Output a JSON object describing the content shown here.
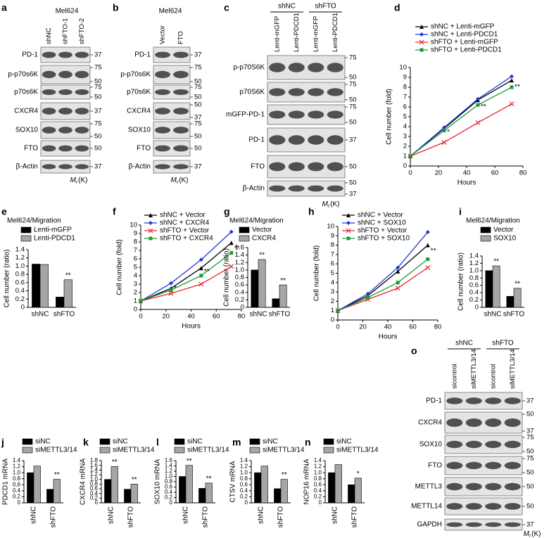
{
  "blots": {
    "a": {
      "panel": "a",
      "title": "Mel624",
      "lanes": [
        "shNC",
        "shFTO-1",
        "shFTO-2"
      ],
      "rows": [
        {
          "label": "PD-1",
          "mw": [
            37
          ]
        },
        {
          "label": "p-p70s6K",
          "mw": [
            75,
            50
          ]
        },
        {
          "label": "p70s6K",
          "mw": [
            75,
            50
          ]
        },
        {
          "label": "CXCR4",
          "mw": [
            37
          ]
        },
        {
          "label": "SOX10",
          "mw": [
            75,
            50
          ]
        },
        {
          "label": "FTO",
          "mw": [
            50
          ]
        },
        {
          "label": "β-Actin",
          "mw": [
            37
          ]
        }
      ],
      "mr": {
        "m": "M",
        "r": "r",
        "unit": "(K)"
      }
    },
    "b": {
      "panel": "b",
      "title": "Mel624",
      "lanes": [
        "Vector",
        "FTO"
      ],
      "rows": [
        {
          "label": "PD-1",
          "mw": [
            37
          ]
        },
        {
          "label": "p-p70s6K",
          "mw": [
            75,
            50
          ]
        },
        {
          "label": "p70s6K",
          "mw": [
            75,
            50
          ]
        },
        {
          "label": "CXCR4",
          "mw": [
            50,
            37
          ]
        },
        {
          "label": "SOX10",
          "mw": [
            75,
            50
          ]
        },
        {
          "label": "FTO",
          "mw": [
            50
          ]
        },
        {
          "label": "β-Actin",
          "mw": [
            37
          ]
        }
      ],
      "mr": {
        "m": "M",
        "r": "r",
        "unit": "(K)"
      }
    },
    "c": {
      "panel": "c",
      "groups": [
        "shNC",
        "shFTO"
      ],
      "lanes": [
        "Lenti-mGFP",
        "Lenti-PDCD1",
        "Lenti-mGFP",
        "Lenti-PDCD1"
      ],
      "rows": [
        {
          "label": "p-p70S6K",
          "mw": [
            75,
            50
          ]
        },
        {
          "label": "p70S6K",
          "mw": [
            75,
            50
          ]
        },
        {
          "label": "mGFP-PD-1",
          "mw": [
            75,
            50
          ]
        },
        {
          "label": "PD-1",
          "mw": [
            37
          ]
        },
        {
          "label": "FTO",
          "mw": [
            50
          ]
        },
        {
          "label": "β-Actin",
          "mw": [
            50,
            37
          ]
        }
      ],
      "mr": {
        "m": "M",
        "r": "r",
        "unit": "(K)"
      }
    },
    "o": {
      "panel": "o",
      "groups": [
        "shNC",
        "shFTO"
      ],
      "lanes": [
        "sicontrol",
        "siMETTL3/14",
        "sicontrol",
        "siMETTL3/14"
      ],
      "rows": [
        {
          "label": "PD-1",
          "mw": [
            37
          ]
        },
        {
          "label": "CXCR4",
          "mw": [
            50,
            37
          ]
        },
        {
          "label": "SOX10",
          "mw": [
            75,
            50
          ]
        },
        {
          "label": "FTO",
          "mw": [
            75,
            50
          ]
        },
        {
          "label": "METTL3",
          "mw": [
            50
          ]
        },
        {
          "label": "METTL14",
          "mw": [
            50
          ]
        },
        {
          "label": "GAPDH",
          "mw": [
            37
          ]
        }
      ],
      "mr": {
        "m": "M",
        "r": "r",
        "unit": "(K)"
      }
    }
  },
  "chart_data": [
    {
      "panel": "d",
      "type": "line",
      "x": [
        0,
        24,
        48,
        72
      ],
      "xlim": [
        0,
        80
      ],
      "xticks": [
        0,
        20,
        40,
        60,
        80
      ],
      "ylim": [
        0,
        10
      ],
      "yticks": [
        0,
        1,
        2,
        3,
        4,
        5,
        6,
        7,
        8,
        9,
        10
      ],
      "xlabel": "Hours",
      "ylabel": "Cell number (fold)",
      "series": [
        {
          "name": "shNC + Lenti-mGFP",
          "color": "#000000",
          "marker": "triangle",
          "values": [
            1,
            3.8,
            6.7,
            8.7
          ]
        },
        {
          "name": "shNC + Lenti-PDCD1",
          "color": "#1f3ad6",
          "marker": "diamond",
          "values": [
            1,
            3.9,
            6.8,
            9.1
          ]
        },
        {
          "name": "shFTO + Lenti-mGFP",
          "color": "#e8262b",
          "marker": "cross",
          "values": [
            1,
            2.4,
            4.4,
            6.3
          ]
        },
        {
          "name": "shFTO + Lenti-PDCD1",
          "color": "#1d9a36",
          "marker": "square",
          "values": [
            1,
            3.6,
            6.2,
            8.0
          ]
        }
      ],
      "annotations": [
        {
          "text": "*",
          "x": 24
        },
        {
          "text": "**",
          "x": 48
        },
        {
          "text": "**",
          "x": 72
        }
      ]
    },
    {
      "panel": "e",
      "type": "bar",
      "subtitle": "Mel624/Migration",
      "ylabel": "Cell number (ratio)",
      "categories": [
        "shNC",
        "shFTO"
      ],
      "ylim": [
        0,
        1.4
      ],
      "yticks": [
        0,
        0.2,
        0.4,
        0.6,
        0.8,
        {
          "value": 1,
          "label": "1.0"
        },
        1.2,
        1.4
      ],
      "series": [
        {
          "name": "Lenti-mGFP",
          "color": "#000000",
          "values": [
            1.05,
            0.25
          ]
        },
        {
          "name": "Lenti-PDCD1",
          "color": "#a6a6a6",
          "values": [
            1.04,
            0.67
          ]
        }
      ],
      "annotations": [
        {
          "text": "**",
          "category": "shFTO"
        }
      ]
    },
    {
      "panel": "f",
      "type": "line",
      "x": [
        0,
        24,
        48,
        72
      ],
      "xlim": [
        0,
        80
      ],
      "xticks": [
        0,
        20,
        40,
        60,
        80
      ],
      "ylim": [
        0,
        10
      ],
      "yticks": [
        0,
        1,
        2,
        3,
        4,
        5,
        6,
        7,
        8,
        9,
        10
      ],
      "xlabel": "Hours",
      "ylabel": "Cell number (fold)",
      "series": [
        {
          "name": "shNC + Vector",
          "color": "#000000",
          "marker": "triangle",
          "values": [
            1,
            2.5,
            4.9,
            7.9
          ]
        },
        {
          "name": "shNC + CXCR4",
          "color": "#1f3ad6",
          "marker": "diamond",
          "values": [
            1,
            3.1,
            5.9,
            9.2
          ]
        },
        {
          "name": "shFTO + Vector",
          "color": "#e8262b",
          "marker": "cross",
          "values": [
            1,
            1.9,
            3.0,
            5.1
          ]
        },
        {
          "name": "shFTO + CXCR4",
          "color": "#1d9a36",
          "marker": "square",
          "values": [
            1,
            2.3,
            4.0,
            6.7
          ]
        }
      ],
      "annotations": [
        {
          "text": "*",
          "x": 24
        },
        {
          "text": "**",
          "x": 48
        },
        {
          "text": "**",
          "x": 72
        }
      ]
    },
    {
      "panel": "g",
      "type": "bar",
      "subtitle": "Mel624/Migration",
      "ylabel": "Cell number (ratio)",
      "categories": [
        "shNC",
        "shFTO"
      ],
      "ylim": [
        0,
        1.6
      ],
      "yticks": [
        0,
        0.2,
        0.4,
        0.6,
        0.8,
        {
          "value": 1,
          "label": "1.0"
        },
        1.2,
        1.4,
        1.6
      ],
      "series": [
        {
          "name": "Vector",
          "color": "#000000",
          "values": [
            1.0,
            0.23
          ]
        },
        {
          "name": "CXCR4",
          "color": "#a6a6a6",
          "values": [
            1.28,
            0.6
          ]
        }
      ],
      "annotations": [
        {
          "text": "**",
          "category": "shNC"
        },
        {
          "text": "**",
          "category": "shFTO"
        }
      ]
    },
    {
      "panel": "h",
      "type": "line",
      "x": [
        0,
        24,
        48,
        72
      ],
      "xlim": [
        0,
        80
      ],
      "xticks": [
        0,
        20,
        40,
        60,
        80
      ],
      "ylim": [
        0,
        10
      ],
      "yticks": [
        0,
        1,
        2,
        3,
        4,
        5,
        6,
        7,
        8,
        9,
        10
      ],
      "xlabel": "Hours",
      "ylabel": "Cell number (fold)",
      "series": [
        {
          "name": "shNC + Vector",
          "color": "#000000",
          "marker": "triangle",
          "values": [
            1,
            2.6,
            5.2,
            8.0
          ]
        },
        {
          "name": "shNC + SOX10",
          "color": "#1f3ad6",
          "marker": "diamond",
          "values": [
            1,
            2.8,
            5.6,
            9.4
          ]
        },
        {
          "name": "shFTO + Vector",
          "color": "#e8262b",
          "marker": "cross",
          "values": [
            1,
            2.2,
            3.4,
            5.6
          ]
        },
        {
          "name": "shFTO + SOX10",
          "color": "#1d9a36",
          "marker": "square",
          "values": [
            1,
            2.4,
            4.0,
            6.5
          ]
        }
      ],
      "annotations": [
        {
          "text": "**",
          "x": 72
        }
      ]
    },
    {
      "panel": "i",
      "type": "bar",
      "subtitle": "Mel624/Migration",
      "ylabel": "Cell number (ratio)",
      "categories": [
        "shNC",
        "shFTO"
      ],
      "ylim": [
        0,
        1.4
      ],
      "yticks": [
        0,
        0.2,
        0.4,
        0.6,
        0.8,
        {
          "value": 1,
          "label": "1.0"
        },
        1.2,
        1.4
      ],
      "series": [
        {
          "name": "Vector",
          "color": "#000000",
          "values": [
            1.0,
            0.3
          ]
        },
        {
          "name": "SOX10",
          "color": "#a6a6a6",
          "values": [
            1.13,
            0.52
          ]
        }
      ],
      "annotations": [
        {
          "text": "**",
          "category": "shNC"
        },
        {
          "text": "**",
          "category": "shFTO"
        }
      ]
    },
    {
      "panel": "j",
      "type": "bar",
      "ylabel": "PDCD1 mRNA",
      "categories": [
        "shNC",
        "shFTO"
      ],
      "ylim": [
        0,
        1.4
      ],
      "yticks": [
        0,
        0.2,
        0.4,
        0.6,
        0.8,
        {
          "value": 1,
          "label": "1.0"
        },
        1.2,
        1.4
      ],
      "series": [
        {
          "name": "siNC",
          "color": "#000000",
          "values": [
            1.0,
            0.45
          ]
        },
        {
          "name": "siMETTL3/14",
          "color": "#a6a6a6",
          "values": [
            1.22,
            0.78
          ]
        }
      ],
      "annotations": [
        {
          "text": "**",
          "category": "shFTO"
        }
      ]
    },
    {
      "panel": "k",
      "type": "bar",
      "ylabel": "CXCR4 mRNA",
      "categories": [
        "shNC",
        "shFTO"
      ],
      "ylim": [
        0,
        1.8
      ],
      "yticks": [
        0,
        0.2,
        0.4,
        0.6,
        0.8,
        {
          "value": 1,
          "label": "1.0"
        },
        1.2,
        1.4,
        1.6,
        1.8
      ],
      "series": [
        {
          "name": "siNC",
          "color": "#000000",
          "values": [
            1.0,
            0.58
          ]
        },
        {
          "name": "siMETTL3/14",
          "color": "#a6a6a6",
          "values": [
            1.55,
            0.8
          ]
        }
      ],
      "annotations": [
        {
          "text": "**",
          "category": "shNC"
        },
        {
          "text": "**",
          "category": "shFTO"
        }
      ]
    },
    {
      "panel": "l",
      "type": "bar",
      "ylabel": "SOX10 mRNA",
      "categories": [
        "shNC",
        "shFTO"
      ],
      "ylim": [
        0,
        1.6
      ],
      "yticks": [
        0,
        0.2,
        0.4,
        0.6,
        0.8,
        {
          "value": 1,
          "label": "1.0"
        },
        1.2,
        1.4,
        1.6
      ],
      "series": [
        {
          "name": "siNC",
          "color": "#000000",
          "values": [
            1.0,
            0.55
          ]
        },
        {
          "name": "siMETTL3/14",
          "color": "#a6a6a6",
          "values": [
            1.42,
            0.75
          ]
        }
      ],
      "annotations": [
        {
          "text": "**",
          "category": "shNC"
        },
        {
          "text": "**",
          "category": "shFTO"
        }
      ]
    },
    {
      "panel": "m",
      "type": "bar",
      "ylabel": "CTSV mRNA",
      "categories": [
        "shNC",
        "shFTO"
      ],
      "ylim": [
        0,
        1.4
      ],
      "yticks": [
        0,
        0.2,
        0.4,
        0.6,
        0.8,
        {
          "value": 1,
          "label": "1.0"
        },
        1.2,
        1.4
      ],
      "series": [
        {
          "name": "siNC",
          "color": "#000000",
          "values": [
            1.0,
            0.47
          ]
        },
        {
          "name": "siMETTL3/14",
          "color": "#a6a6a6",
          "values": [
            1.22,
            0.78
          ]
        }
      ],
      "annotations": [
        {
          "text": "**",
          "category": "shFTO"
        }
      ]
    },
    {
      "panel": "n",
      "type": "bar",
      "ylabel": "NOP16 mRNA",
      "categories": [
        "shNC",
        "shFTO"
      ],
      "ylim": [
        0,
        1.4
      ],
      "yticks": [
        0,
        0.2,
        0.4,
        0.6,
        0.8,
        {
          "value": 1,
          "label": "1.0"
        },
        1.2,
        1.4
      ],
      "series": [
        {
          "name": "siNC",
          "color": "#000000",
          "values": [
            1.0,
            0.6
          ]
        },
        {
          "name": "siMETTL3/14",
          "color": "#a6a6a6",
          "values": [
            1.27,
            0.82
          ]
        }
      ],
      "annotations": [
        {
          "text": "*",
          "category": "shFTO"
        }
      ]
    }
  ]
}
